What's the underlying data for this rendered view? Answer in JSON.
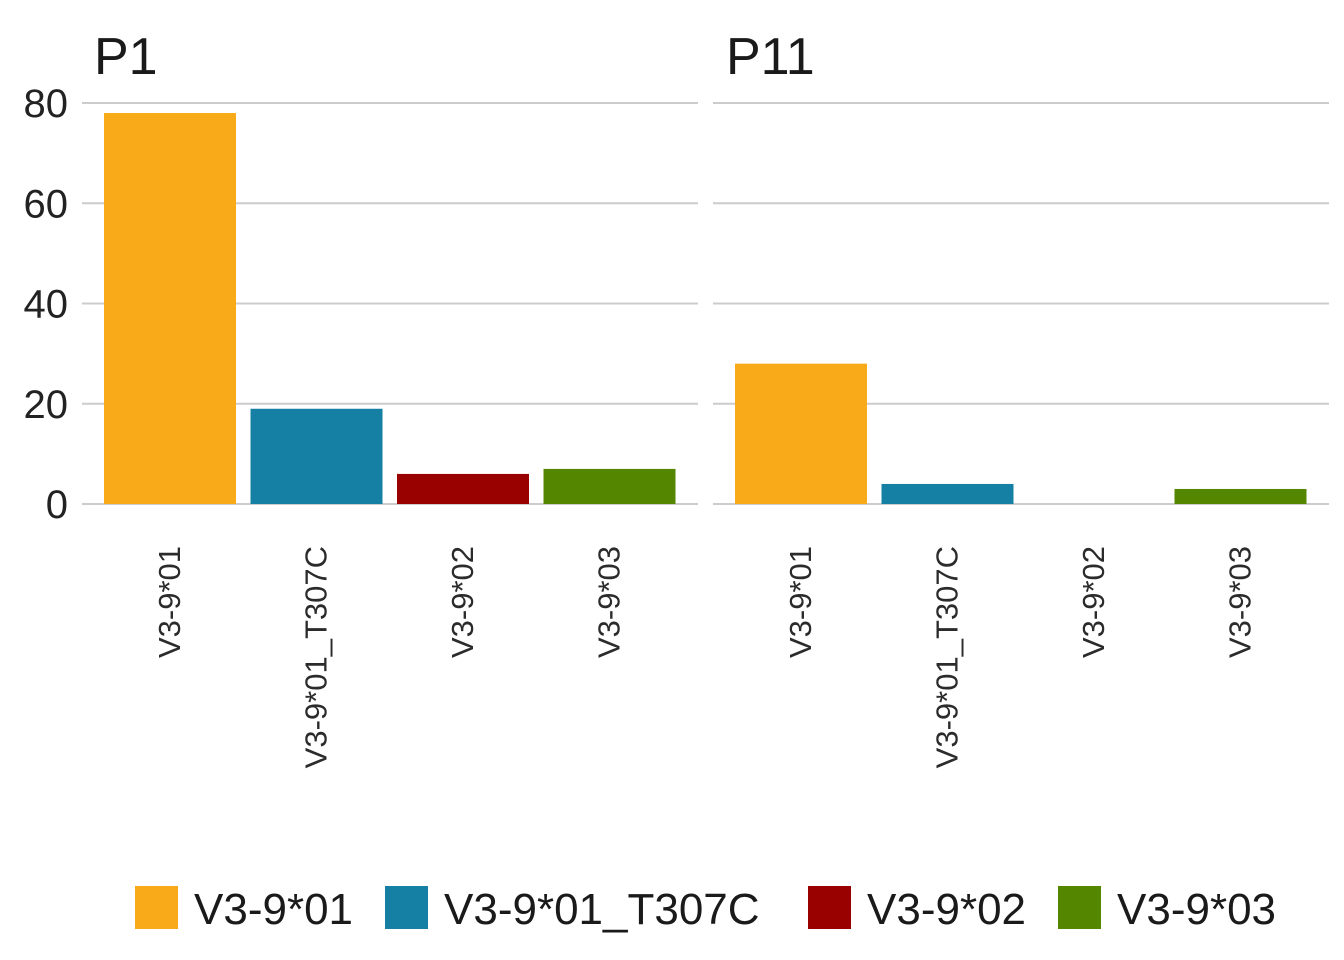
{
  "chart_data": {
    "type": "bar",
    "facets": [
      {
        "title": "P1",
        "categories": [
          "V3-9*01",
          "V3-9*01_T307C",
          "V3-9*02",
          "V3-9*03"
        ],
        "values": [
          78,
          19,
          6,
          7
        ]
      },
      {
        "title": "P11",
        "categories": [
          "V3-9*01",
          "V3-9*01_T307C",
          "V3-9*02",
          "V3-9*03"
        ],
        "values": [
          28,
          4,
          0,
          3
        ]
      }
    ],
    "ylim": [
      0,
      80
    ],
    "yticks": [
      "0",
      "20",
      "40",
      "60",
      "80"
    ],
    "xlabel": "",
    "ylabel": "",
    "grid": "horizontal",
    "legend_position": "bottom",
    "legend": [
      {
        "label": "V3-9*01",
        "color": "#F8AA19"
      },
      {
        "label": "V3-9*01_T307C",
        "color": "#1580A4"
      },
      {
        "label": "V3-9*02",
        "color": "#990000"
      },
      {
        "label": "V3-9*03",
        "color": "#558600"
      }
    ]
  }
}
